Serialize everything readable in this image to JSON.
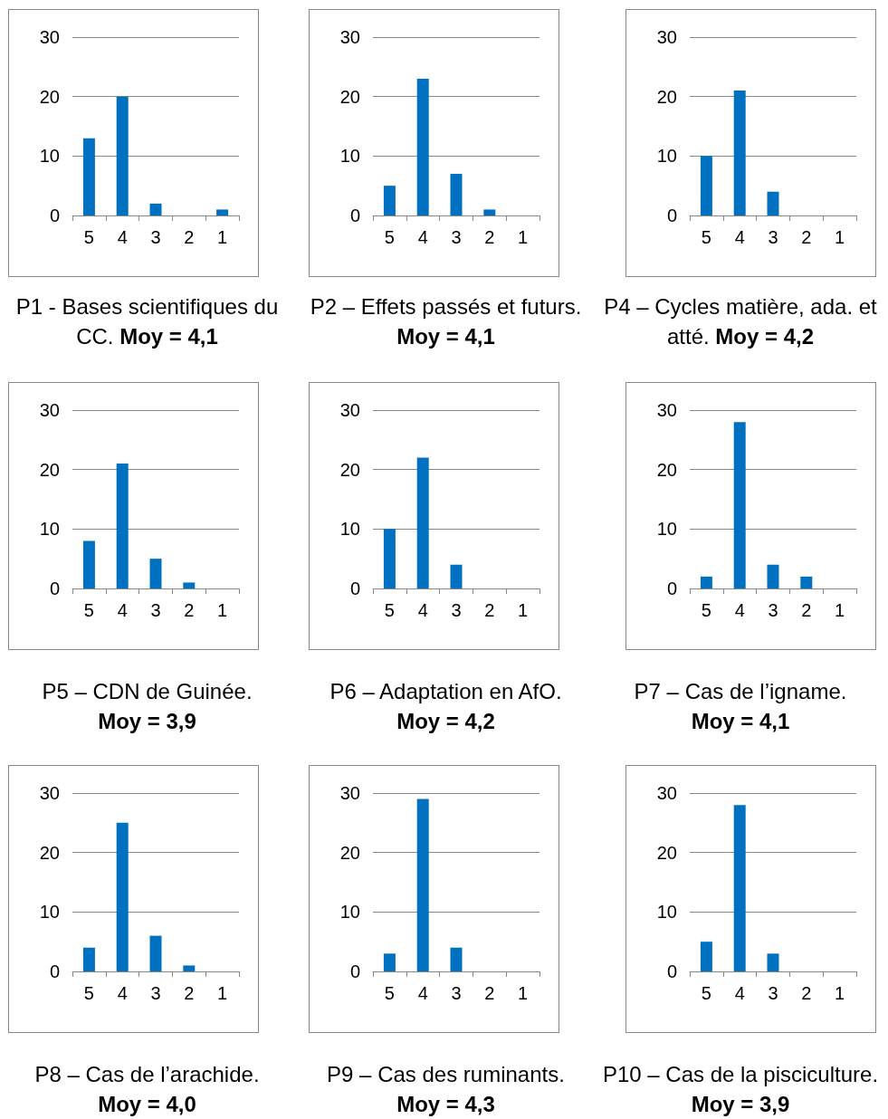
{
  "chart_data": [
    {
      "type": "bar",
      "title": "P1 - Bases scientifiques du CC.",
      "subtitle": "Moy = 4,1",
      "categories": [
        "5",
        "4",
        "3",
        "2",
        "1"
      ],
      "values": [
        13,
        20,
        2,
        0,
        1
      ],
      "color": "#0070c0",
      "ylim": [
        0,
        30
      ],
      "yticks": [
        0,
        10,
        20,
        30
      ],
      "grid": "y"
    },
    {
      "type": "bar",
      "title": "P2 – Effets passés et futurs.",
      "subtitle": "Moy = 4,1",
      "categories": [
        "5",
        "4",
        "3",
        "2",
        "1"
      ],
      "values": [
        5,
        23,
        7,
        1,
        0
      ],
      "color": "#0070c0",
      "ylim": [
        0,
        30
      ],
      "yticks": [
        0,
        10,
        20,
        30
      ],
      "grid": "y"
    },
    {
      "type": "bar",
      "title": "P4 – Cycles matière, ada. et atté.",
      "subtitle": "Moy = 4,2",
      "categories": [
        "5",
        "4",
        "3",
        "2",
        "1"
      ],
      "values": [
        10,
        21,
        4,
        0,
        0
      ],
      "color": "#0070c0",
      "ylim": [
        0,
        30
      ],
      "yticks": [
        0,
        10,
        20,
        30
      ],
      "grid": "y"
    },
    {
      "type": "bar",
      "title": "P5 – CDN de Guinée.",
      "subtitle": "Moy = 3,9",
      "categories": [
        "5",
        "4",
        "3",
        "2",
        "1"
      ],
      "values": [
        8,
        21,
        5,
        1,
        0
      ],
      "color": "#0070c0",
      "ylim": [
        0,
        30
      ],
      "yticks": [
        0,
        10,
        20,
        30
      ],
      "grid": "y"
    },
    {
      "type": "bar",
      "title": "P6 – Adaptation en AfO.",
      "subtitle": "Moy = 4,2",
      "categories": [
        "5",
        "4",
        "3",
        "2",
        "1"
      ],
      "values": [
        10,
        22,
        4,
        0,
        0
      ],
      "color": "#0070c0",
      "ylim": [
        0,
        30
      ],
      "yticks": [
        0,
        10,
        20,
        30
      ],
      "grid": "y"
    },
    {
      "type": "bar",
      "title": "P7 – Cas de l’igname.",
      "subtitle": "Moy = 4,1",
      "categories": [
        "5",
        "4",
        "3",
        "2",
        "1"
      ],
      "values": [
        2,
        28,
        4,
        2,
        0
      ],
      "color": "#0070c0",
      "ylim": [
        0,
        30
      ],
      "yticks": [
        0,
        10,
        20,
        30
      ],
      "grid": "y"
    },
    {
      "type": "bar",
      "title": "P8 – Cas de l’arachide.",
      "subtitle": "Moy = 4,0",
      "categories": [
        "5",
        "4",
        "3",
        "2",
        "1"
      ],
      "values": [
        4,
        25,
        6,
        1,
        0
      ],
      "color": "#0070c0",
      "ylim": [
        0,
        30
      ],
      "yticks": [
        0,
        10,
        20,
        30
      ],
      "grid": "y"
    },
    {
      "type": "bar",
      "title": "P9 – Cas des ruminants.",
      "subtitle": "Moy = 4,3",
      "categories": [
        "5",
        "4",
        "3",
        "2",
        "1"
      ],
      "values": [
        3,
        29,
        4,
        0,
        0
      ],
      "color": "#0070c0",
      "ylim": [
        0,
        30
      ],
      "yticks": [
        0,
        10,
        20,
        30
      ],
      "grid": "y"
    },
    {
      "type": "bar",
      "title": "P10 – Cas de la pisciculture.",
      "subtitle": "Moy = 3,9",
      "categories": [
        "5",
        "4",
        "3",
        "2",
        "1"
      ],
      "values": [
        5,
        28,
        3,
        0,
        0
      ],
      "color": "#0070c0",
      "ylim": [
        0,
        30
      ],
      "yticks": [
        0,
        10,
        20,
        30
      ],
      "grid": "y"
    }
  ]
}
